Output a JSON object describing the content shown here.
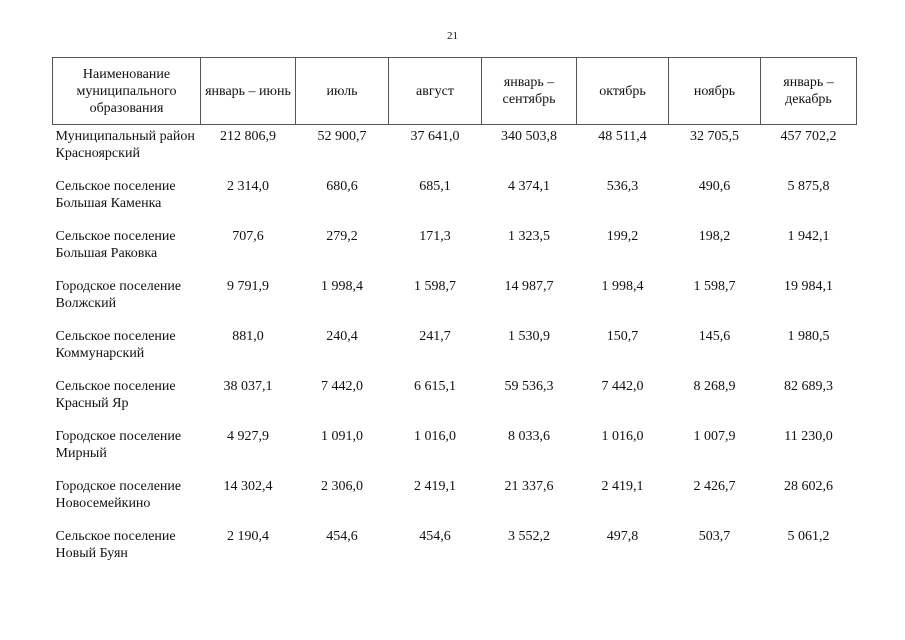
{
  "page_number": "21",
  "table": {
    "headers": [
      "Наименование муниципального образования",
      "январь – июнь",
      "июль",
      "август",
      "январь – сентябрь",
      "октябрь",
      "ноябрь",
      "январь – декабрь"
    ],
    "rows": [
      {
        "name": "Муниципальный район Красноярский",
        "values": [
          "212 806,9",
          "52 900,7",
          "37 641,0",
          "340 503,8",
          "48 511,4",
          "32 705,5",
          "457 702,2"
        ]
      },
      {
        "name": "Сельское поселение Большая Каменка",
        "values": [
          "2 314,0",
          "680,6",
          "685,1",
          "4 374,1",
          "536,3",
          "490,6",
          "5 875,8"
        ]
      },
      {
        "name": "Сельское поселение Большая Раковка",
        "values": [
          "707,6",
          "279,2",
          "171,3",
          "1 323,5",
          "199,2",
          "198,2",
          "1 942,1"
        ]
      },
      {
        "name": "Городское поселение Волжский",
        "values": [
          "9 791,9",
          "1 998,4",
          "1 598,7",
          "14 987,7",
          "1 998,4",
          "1 598,7",
          "19 984,1"
        ]
      },
      {
        "name": "Сельское поселение Коммунарский",
        "values": [
          "881,0",
          "240,4",
          "241,7",
          "1 530,9",
          "150,7",
          "145,6",
          "1 980,5"
        ]
      },
      {
        "name": "Сельское поселение Красный Яр",
        "values": [
          "38 037,1",
          "7 442,0",
          "6 615,1",
          "59 536,3",
          "7 442,0",
          "8 268,9",
          "82 689,3"
        ]
      },
      {
        "name": "Городское поселение Мирный",
        "values": [
          "4 927,9",
          "1 091,0",
          "1 016,0",
          "8 033,6",
          "1 016,0",
          "1 007,9",
          "11 230,0"
        ]
      },
      {
        "name": "Городское поселение Новосемейкино",
        "values": [
          "14 302,4",
          "2 306,0",
          "2 419,1",
          "21 337,6",
          "2 419,1",
          "2 426,7",
          "28 602,6"
        ]
      },
      {
        "name": "Сельское поселение Новый Буян",
        "values": [
          "2 190,4",
          "454,6",
          "454,6",
          "3 552,2",
          "497,8",
          "503,7",
          "5 061,2"
        ]
      }
    ]
  }
}
